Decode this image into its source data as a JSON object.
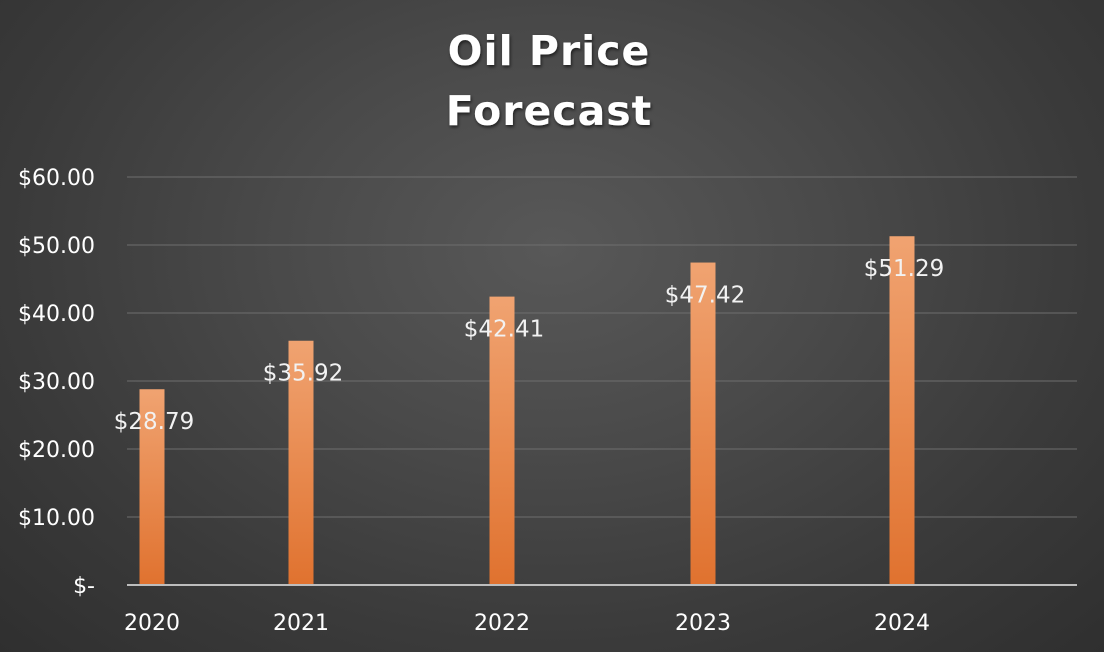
{
  "chart_data": {
    "type": "bar",
    "title_lines": [
      "Oil Price",
      "Forecast"
    ],
    "categories": [
      "2020",
      "2021",
      "2022",
      "2023",
      "2024"
    ],
    "values": [
      28.79,
      35.92,
      42.41,
      47.42,
      51.29
    ],
    "data_labels": [
      "$28.79",
      "$35.92",
      "$42.41",
      "$47.42",
      "$51.29"
    ],
    "y_ticks": [
      0,
      10,
      20,
      30,
      40,
      50,
      60
    ],
    "y_tick_labels": [
      "$-",
      "$10.00",
      "$20.00",
      "$30.00",
      "$40.00",
      "$50.00",
      "$60.00"
    ],
    "ylim": [
      0,
      60
    ],
    "xlabel": "",
    "ylabel": "",
    "grid": true,
    "legend": "none",
    "colors": {
      "bar_top": "#f0a371",
      "bar_bottom": "#e0722f",
      "background": "#4a4a4a"
    }
  }
}
